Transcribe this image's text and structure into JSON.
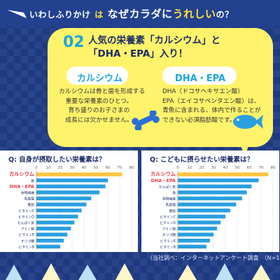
{
  "header": {
    "part_1": "いわしふりかけ",
    "part_2": "は",
    "part_3": "なぜカラダに",
    "part_4": "うれしい",
    "part_5": "の？"
  },
  "callout": {
    "number": "02",
    "line_1": "人気の栄養素「カルシウム」と",
    "line_2": "「DHA・EPA」入り！"
  },
  "calcium": {
    "label": "カルシウム",
    "desc": [
      "カルシウムは骨と歯を形成する",
      "重要な栄養素のひとつ。",
      "育ち盛りのお子さまの",
      "成長には欠かせません。"
    ]
  },
  "dha": {
    "label": "DHA・EPA",
    "desc": [
      "DHA（ドコサヘキサエン酸）",
      "EPA（エイコサペンタエン酸）は、",
      "青魚に含まれる、体内で作ることが",
      "できない必須脂肪酸です。"
    ]
  },
  "chart_data": [
    {
      "type": "bar",
      "title": "Q:  自身が摂取したい栄養素は？",
      "x_ticks": [
        "0",
        "10",
        "20",
        "30",
        "40",
        "50",
        "60",
        "70",
        "80"
      ],
      "xlim": [
        0,
        80
      ],
      "categories": [
        "カルシウム",
        "鉄",
        "DHA・EPA",
        "食物繊維",
        "乳酸菌",
        "亜鉛",
        "ビタミンC",
        "ビタミンD",
        "たんぱく質",
        "アミノ酸",
        "ビタミンE",
        "オリゴ糖",
        "ビタミンB"
      ],
      "values": [
        72,
        60,
        58,
        53,
        46,
        42,
        38,
        35,
        32,
        29,
        26,
        23,
        20
      ],
      "highlight": [
        0,
        2
      ],
      "colors": {
        "top": "#ffc43d",
        "normal": "#2a9fe0"
      }
    },
    {
      "type": "bar",
      "title": "Q:  こどもに摂らせたい栄養素は？",
      "x_ticks": [
        "0",
        "10",
        "20",
        "30",
        "40",
        "50",
        "60",
        "70",
        "80"
      ],
      "xlim": [
        0,
        80
      ],
      "categories": [
        "カルシウム",
        "DHA・EPA",
        "たんぱく質",
        "鉄",
        "食物繊維",
        "乳酸菌",
        "亜鉛",
        "ビタミンC",
        "ビタミンD",
        "アミノ酸",
        "オリゴ糖",
        "ビタミンE",
        "ビタミンB"
      ],
      "values": [
        76,
        68,
        62,
        58,
        54,
        49,
        44,
        40,
        36,
        33,
        30,
        27,
        24
      ],
      "highlight": [
        0,
        1
      ],
      "colors": {
        "top": "#ffc43d",
        "normal": "#2a9fe0"
      }
    }
  ],
  "footer": {
    "note": "（当社調べ：インターネットアンケート調査　（N=100））"
  },
  "colors": {
    "background": "#1e3a82",
    "bubble": "#fff36b",
    "accent": "#1aa6dd",
    "highlight_text": "#ffe33a",
    "red": "#e8383d"
  }
}
